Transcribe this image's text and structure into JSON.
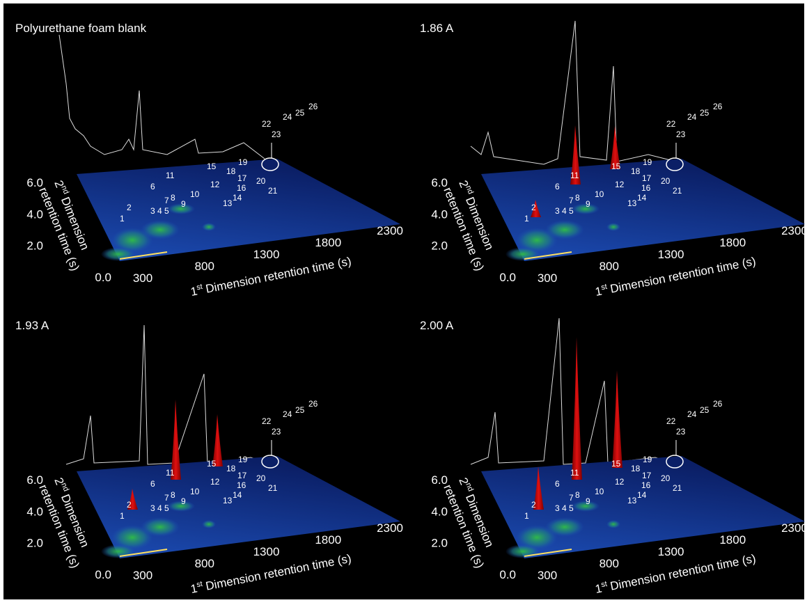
{
  "chart_data": [
    {
      "type": "surface3d",
      "title": "Polyurethane foam blank",
      "x_label": {
        "number": "1",
        "suffix": "st",
        "text": "Dimension retention time (s)"
      },
      "y_label": {
        "number": "2",
        "suffix": "nd",
        "text": "Dimension",
        "line2": "retention time (s)"
      },
      "xlim": [
        300,
        2300
      ],
      "xticks": [
        300,
        800,
        1300,
        1800,
        2300
      ],
      "ylim": [
        0,
        6
      ],
      "yticks": [
        {
          "value": 0,
          "label": "0.0"
        },
        {
          "value": 2,
          "label": "2.0"
        },
        {
          "value": 4,
          "label": "4.0"
        },
        {
          "value": 6,
          "label": "6.0"
        }
      ],
      "peak_labels": [
        "1",
        "2",
        "3",
        "4",
        "5",
        "6",
        "7",
        "8",
        "9",
        "10",
        "11",
        "12",
        "13",
        "14",
        "15",
        "16",
        "17",
        "18",
        "19",
        "20",
        "21",
        "22",
        "23",
        "24",
        "25",
        "26"
      ]
    },
    {
      "type": "surface3d",
      "title": "1.86 A",
      "x_label": {
        "number": "1",
        "suffix": "st",
        "text": "Dimension retention time (s)"
      },
      "y_label": {
        "number": "2",
        "suffix": "nd",
        "text": "Dimension",
        "line2": "retention time (s)"
      },
      "xlim": [
        300,
        2300
      ],
      "xticks": [
        300,
        800,
        1300,
        1800,
        2300
      ],
      "ylim": [
        0,
        6
      ],
      "yticks": [
        {
          "value": 0,
          "label": "0.0"
        },
        {
          "value": 2,
          "label": "2.0"
        },
        {
          "value": 4,
          "label": "4.0"
        },
        {
          "value": 6,
          "label": "6.0"
        }
      ],
      "peak_labels": [
        "1",
        "2",
        "3",
        "4",
        "5",
        "6",
        "7",
        "8",
        "9",
        "10",
        "11",
        "12",
        "13",
        "14",
        "15",
        "16",
        "17",
        "18",
        "19",
        "20",
        "21",
        "22",
        "23",
        "24",
        "25",
        "26"
      ]
    },
    {
      "type": "surface3d",
      "title": "1.93 A",
      "x_label": {
        "number": "1",
        "suffix": "st",
        "text": "Dimension retention time (s)"
      },
      "y_label": {
        "number": "2",
        "suffix": "nd",
        "text": "Dimension",
        "line2": "retention time (s)"
      },
      "xlim": [
        300,
        2300
      ],
      "xticks": [
        300,
        800,
        1300,
        1800,
        2300
      ],
      "ylim": [
        0,
        6
      ],
      "yticks": [
        {
          "value": 0,
          "label": "0.0"
        },
        {
          "value": 2,
          "label": "2.0"
        },
        {
          "value": 4,
          "label": "4.0"
        },
        {
          "value": 6,
          "label": "6.0"
        }
      ],
      "peak_labels": [
        "1",
        "2",
        "3",
        "4",
        "5",
        "6",
        "7",
        "8",
        "9",
        "10",
        "11",
        "12",
        "13",
        "14",
        "15",
        "16",
        "17",
        "18",
        "19",
        "20",
        "21",
        "22",
        "23",
        "24",
        "25",
        "26"
      ]
    },
    {
      "type": "surface3d",
      "title": "2.00 A",
      "x_label": {
        "number": "1",
        "suffix": "st",
        "text": "Dimension retention time (s)"
      },
      "y_label": {
        "number": "2",
        "suffix": "nd",
        "text": "Dimension",
        "line2": "retention time (s)"
      },
      "xlim": [
        300,
        2300
      ],
      "xticks": [
        300,
        800,
        1300,
        1800,
        2300
      ],
      "ylim": [
        0,
        6
      ],
      "yticks": [
        {
          "value": 0,
          "label": "0.0"
        },
        {
          "value": 2,
          "label": "2.0"
        },
        {
          "value": 4,
          "label": "4.0"
        },
        {
          "value": 6,
          "label": "6.0"
        }
      ],
      "peak_labels": [
        "1",
        "2",
        "3",
        "4",
        "5",
        "6",
        "7",
        "8",
        "9",
        "10",
        "11",
        "12",
        "13",
        "14",
        "15",
        "16",
        "17",
        "18",
        "19",
        "20",
        "21",
        "22",
        "23",
        "24",
        "25",
        "26"
      ]
    }
  ]
}
